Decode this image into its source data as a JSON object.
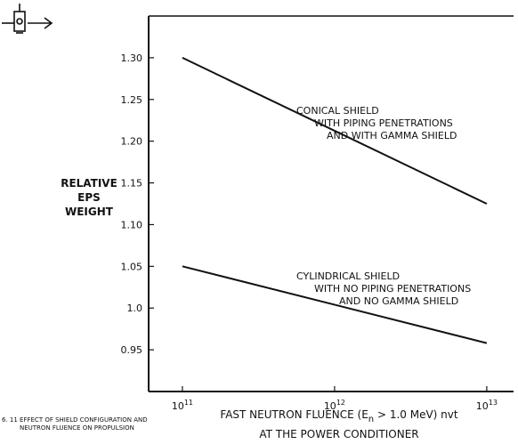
{
  "chart_data": {
    "type": "line",
    "x_scale": "log",
    "xlim": [
      60000000000.0,
      15000000000000.0
    ],
    "ylim": [
      0.9,
      1.35
    ],
    "y_ticks": [
      "0.95",
      "1.0",
      "1.05",
      "1.10",
      "1.15",
      "1.20",
      "1.25",
      "1.30"
    ],
    "y_tick_values": [
      0.95,
      1.0,
      1.05,
      1.1,
      1.15,
      1.2,
      1.25,
      1.3
    ],
    "x_ticks": [
      {
        "value": 100000000000.0,
        "base": "10",
        "exp": "11"
      },
      {
        "value": 1000000000000.0,
        "base": "10",
        "exp": "12"
      },
      {
        "value": 10000000000000.0,
        "base": "10",
        "exp": "13"
      }
    ],
    "ylabel": [
      "RELATIVE",
      "EPS",
      "WEIGHT"
    ],
    "xlabel": {
      "line1_before": "FAST NEUTRON FLUENCE (E",
      "line1_sub": "n",
      "line1_after": " > 1.0 MeV) nvt",
      "line2": "AT THE POWER CONDITIONER"
    },
    "series": [
      {
        "name": "CONICAL SHIELD WITH PIPING PENETRATIONS AND WITH GAMMA SHIELD",
        "label_lines": [
          "CONICAL SHIELD",
          "WITH PIPING PENETRATIONS",
          "AND WITH GAMMA SHIELD"
        ],
        "points": [
          {
            "x": 100000000000.0,
            "y": 1.3
          },
          {
            "x": 10000000000000.0,
            "y": 1.125
          }
        ]
      },
      {
        "name": "CYLINDRICAL SHIELD WITH NO PIPING PENETRATIONS AND NO GAMMA SHIELD",
        "label_lines": [
          "CYLINDRICAL SHIELD",
          "WITH NO PIPING PENETRATIONS",
          "AND NO GAMMA SHIELD"
        ],
        "points": [
          {
            "x": 100000000000.0,
            "y": 1.05
          },
          {
            "x": 10000000000000.0,
            "y": 0.958
          }
        ]
      }
    ],
    "caption": [
      "6. 11  EFFECT OF SHIELD CONFIGURATION AND",
      "NEUTRON FLUENCE ON PROPULSION"
    ],
    "grid": false,
    "legend": "inline labels"
  }
}
